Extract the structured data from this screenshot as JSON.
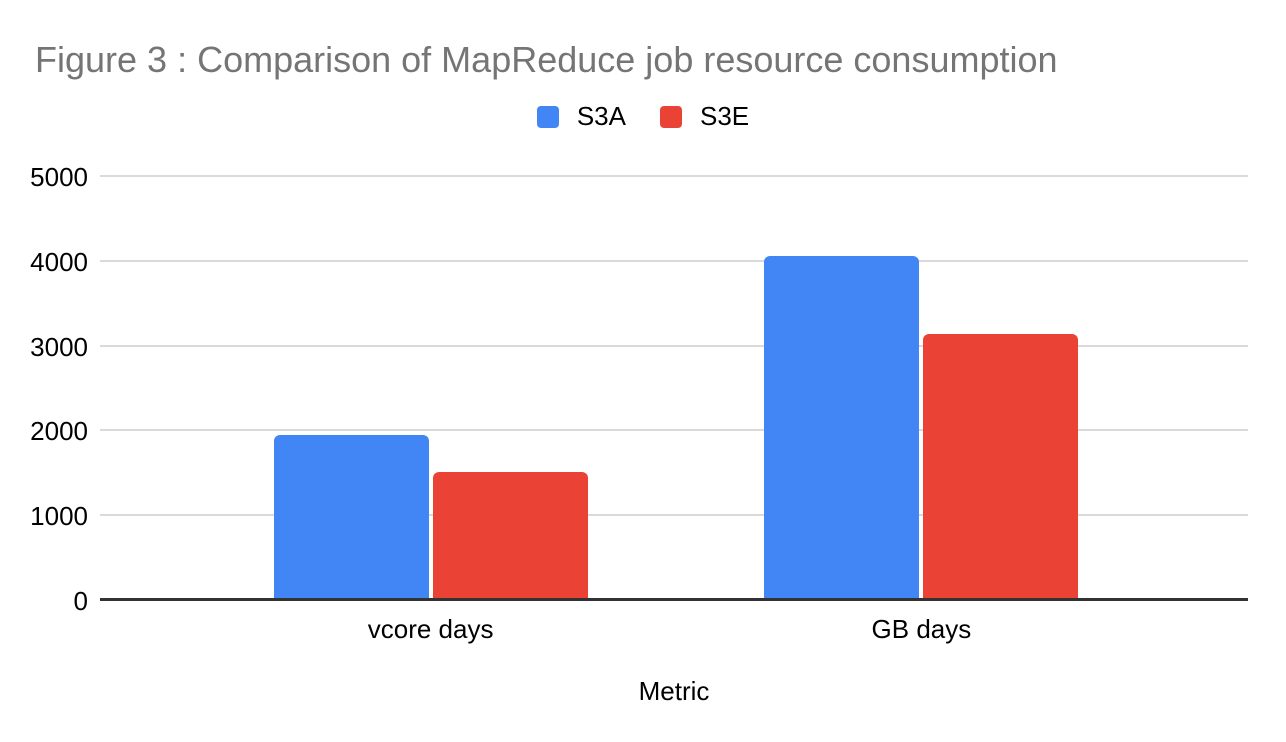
{
  "title": "Figure 3 : Comparison of MapReduce job resource consumption",
  "x_axis_title": "Metric",
  "colors": {
    "s3a": "#4285f4",
    "s3e": "#ea4335",
    "title_text": "#757575",
    "gridline": "#dadada",
    "axis_line": "#333333",
    "label_text": "#000000",
    "background": "#ffffff"
  },
  "legend": {
    "position": "top-center",
    "items": [
      {
        "label": "S3A",
        "color": "#4285f4"
      },
      {
        "label": "S3E",
        "color": "#ea4335"
      }
    ]
  },
  "chart_data": {
    "type": "bar",
    "title": "Figure 3 : Comparison of MapReduce job resource consumption",
    "xlabel": "Metric",
    "ylabel": "",
    "categories": [
      "vcore days",
      "GB days"
    ],
    "series": [
      {
        "name": "S3A",
        "color": "#4285f4",
        "values": [
          1950,
          4060
        ]
      },
      {
        "name": "S3E",
        "color": "#ea4335",
        "values": [
          1510,
          3140
        ]
      }
    ],
    "ylim": [
      0,
      5000
    ],
    "yticks": [
      0,
      1000,
      2000,
      3000,
      4000,
      5000
    ],
    "grid": true,
    "legend_position": "top"
  }
}
